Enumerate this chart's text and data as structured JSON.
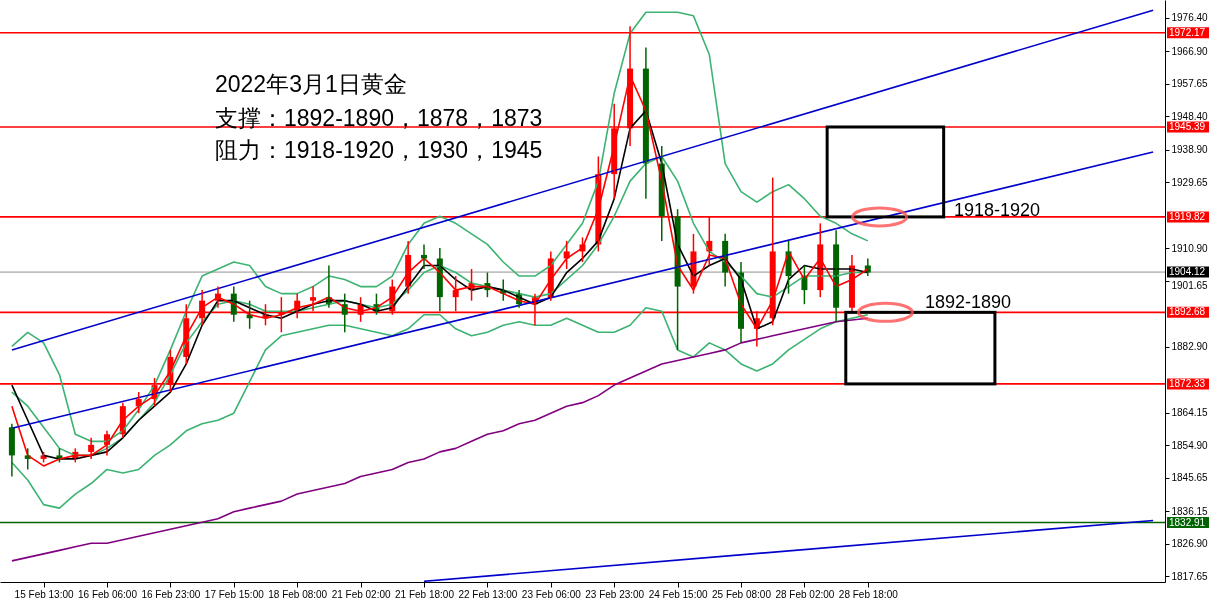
{
  "chart_data": {
    "type": "candlestick",
    "title": "2022年3月1日黄金",
    "annotations": [
      "支撑：1892-1890，1878，1873",
      "阻力：1918-1920，1930，1945",
      "1918-1920",
      "1892-1890"
    ],
    "categories": [
      null,
      null,
      "15 Feb 13:00",
      null,
      null,
      null,
      "16 Feb 06:00",
      null,
      null,
      null,
      "16 Feb 23:00",
      null,
      null,
      null,
      "17 Feb 15:00",
      null,
      null,
      null,
      "18 Feb 08:00",
      null,
      null,
      null,
      "21 Feb 02:00",
      null,
      null,
      null,
      "21 Feb 18:00",
      null,
      null,
      null,
      "22 Feb 13:00",
      null,
      null,
      null,
      "23 Feb 06:00",
      null,
      null,
      null,
      "23 Feb 23:00",
      null,
      null,
      null,
      "24 Feb 15:00",
      null,
      null,
      null,
      "25 Feb 08:00",
      null,
      null,
      null,
      "28 Feb 02:00",
      null,
      null,
      null,
      "28 Feb 18:00",
      null,
      null,
      null,
      null,
      null,
      null,
      null,
      null,
      null,
      null,
      null,
      null,
      null,
      null,
      null,
      null,
      null,
      null
    ],
    "ohlc": [
      [
        1860,
        1861,
        1846,
        1852
      ],
      [
        1852,
        1854,
        1848,
        1851
      ],
      [
        1851,
        1853,
        1850,
        1852
      ],
      [
        1852,
        1854,
        1850,
        1851
      ],
      [
        1851,
        1854,
        1850,
        1853
      ],
      [
        1853,
        1857,
        1851,
        1855
      ],
      [
        1855,
        1859,
        1852,
        1858
      ],
      [
        1858,
        1867,
        1857,
        1866
      ],
      [
        1866,
        1870,
        1864,
        1868
      ],
      [
        1868,
        1874,
        1866,
        1872
      ],
      [
        1872,
        1882,
        1870,
        1880
      ],
      [
        1880,
        1895,
        1878,
        1891
      ],
      [
        1891,
        1899,
        1889,
        1896
      ],
      [
        1896,
        1900,
        1894,
        1898
      ],
      [
        1898,
        1900,
        1890,
        1892
      ],
      [
        1892,
        1896,
        1888,
        1891
      ],
      [
        1891,
        1895,
        1889,
        1892
      ],
      [
        1892,
        1897,
        1887,
        1893
      ],
      [
        1893,
        1898,
        1891,
        1896
      ],
      [
        1896,
        1900,
        1893,
        1897
      ],
      [
        1897,
        1906,
        1894,
        1895
      ],
      [
        1895,
        1898,
        1887,
        1892
      ],
      [
        1892,
        1897,
        1890,
        1895
      ],
      [
        1895,
        1898,
        1892,
        1893
      ],
      [
        1893,
        1902,
        1892,
        1900
      ],
      [
        1900,
        1913,
        1898,
        1909
      ],
      [
        1909,
        1912,
        1905,
        1908
      ],
      [
        1908,
        1911,
        1893,
        1897
      ],
      [
        1897,
        1903,
        1893,
        1899
      ],
      [
        1899,
        1905,
        1896,
        1901
      ],
      [
        1901,
        1904,
        1897,
        1899
      ],
      [
        1899,
        1902,
        1896,
        1898
      ],
      [
        1898,
        1899,
        1894,
        1895
      ],
      [
        1895,
        1898,
        1889,
        1897
      ],
      [
        1897,
        1910,
        1896,
        1908
      ],
      [
        1908,
        1913,
        1905,
        1910
      ],
      [
        1910,
        1914,
        1907,
        1912
      ],
      [
        1912,
        1937,
        1910,
        1932
      ],
      [
        1932,
        1952,
        1925,
        1945
      ],
      [
        1945,
        1974,
        1940,
        1962
      ],
      [
        1962,
        1968,
        1925,
        1935
      ],
      [
        1935,
        1940,
        1913,
        1920
      ],
      [
        1920,
        1922,
        1882,
        1900
      ],
      [
        1900,
        1915,
        1898,
        1910
      ],
      [
        1910,
        1920,
        1906,
        1913
      ],
      [
        1913,
        1915,
        1900,
        1904
      ],
      [
        1904,
        1907,
        1884,
        1888
      ],
      [
        1888,
        1893,
        1883,
        1891
      ],
      [
        1891,
        1931,
        1889,
        1910
      ],
      [
        1910,
        1913,
        1898,
        1903
      ],
      [
        1903,
        1906,
        1895,
        1899
      ],
      [
        1899,
        1918,
        1897,
        1912
      ],
      [
        1912,
        1916,
        1890,
        1894
      ],
      [
        1894,
        1909,
        1893,
        1906
      ],
      [
        1906,
        1908,
        1903,
        1904
      ],
      null,
      null,
      null,
      null,
      null,
      null,
      null,
      null,
      null,
      null,
      null,
      null,
      null,
      null,
      null,
      null,
      null,
      null
    ],
    "colors": [
      "#006400",
      "#006400",
      "#ff0000",
      "#006400",
      "#ff0000",
      "#ff0000",
      "#ff0000",
      "#ff0000",
      "#ff0000",
      "#ff0000",
      "#ff0000",
      "#ff0000",
      "#ff0000",
      "#ff0000",
      "#006400",
      "#006400",
      "#ff0000",
      "#ff0000",
      "#ff0000",
      "#ff0000",
      "#006400",
      "#006400",
      "#ff0000",
      "#006400",
      "#ff0000",
      "#ff0000",
      "#006400",
      "#006400",
      "#ff0000",
      "#ff0000",
      "#006400",
      "#006400",
      "#006400",
      "#ff0000",
      "#ff0000",
      "#ff0000",
      "#ff0000",
      "#ff0000",
      "#ff0000",
      "#ff0000",
      "#006400",
      "#006400",
      "#006400",
      "#ff0000",
      "#ff0000",
      "#006400",
      "#006400",
      "#ff0000",
      "#ff0000",
      "#006400",
      "#006400",
      "#ff0000",
      "#006400",
      "#ff0000",
      "#006400",
      null,
      null,
      null,
      null,
      null,
      null,
      null,
      null,
      null,
      null,
      null,
      null,
      null,
      null,
      null,
      null,
      null,
      null
    ],
    "ylim": [
      1816,
      1981.5
    ],
    "yticks": [
      {
        "value": 1976.4,
        "label": "1976.40"
      },
      {
        "value": 1966.9,
        "label": "1966.90"
      },
      {
        "value": 1957.65,
        "label": "1957.65"
      },
      {
        "value": 1948.4,
        "label": "1948.40"
      },
      {
        "value": 1938.9,
        "label": "1938.90"
      },
      {
        "value": 1929.65,
        "label": "1929.65"
      },
      {
        "value": 1910.9,
        "label": "1910.90"
      },
      {
        "value": 1901.65,
        "label": "1901.65"
      },
      {
        "value": 1882.9,
        "label": "1882.90"
      },
      {
        "value": 1864.15,
        "label": "1864.15"
      },
      {
        "value": 1854.9,
        "label": "1854.90"
      },
      {
        "value": 1845.65,
        "label": "1845.65"
      },
      {
        "value": 1836.15,
        "label": "1836.15"
      },
      {
        "value": 1826.9,
        "label": "1826.90"
      },
      {
        "value": 1817.65,
        "label": "1817.65"
      }
    ],
    "ref_lines": [
      {
        "axis": "y",
        "value": 1972.17,
        "label": "1972.17",
        "color": "#ff0000"
      },
      {
        "axis": "y",
        "value": 1945.39,
        "label": "1945.39",
        "color": "#ff0000"
      },
      {
        "axis": "y",
        "value": 1919.82,
        "label": "1919.82",
        "color": "#ff0000"
      },
      {
        "axis": "y",
        "value": 1892.68,
        "label": "1892.68",
        "color": "#ff0000"
      },
      {
        "axis": "y",
        "value": 1872.33,
        "label": "1872.33",
        "color": "#ff0000"
      },
      {
        "axis": "y",
        "value": 1904.12,
        "label": "1904.12",
        "color": "#c0c0c0"
      },
      {
        "axis": "y",
        "value": 1832.91,
        "label": "1832.91",
        "color": "#006400"
      }
    ],
    "series": [
      {
        "type": "line",
        "color": "#3cb371",
        "values": [
          1883,
          1887,
          1884,
          1875,
          1858,
          1856,
          1856,
          1859,
          1865,
          1872,
          1882,
          1893,
          1903,
          1905,
          1907,
          1906,
          1900,
          1898,
          1898,
          1900,
          1903,
          1902,
          1900,
          1900,
          1903,
          1912,
          1918,
          1920,
          1918,
          1915,
          1912,
          1907,
          1903,
          1903,
          1906,
          1912,
          1918,
          1930,
          1955,
          1972,
          1978,
          1978,
          1978,
          1977,
          1966,
          1935,
          1927,
          1924,
          1927,
          1929,
          1925,
          1920,
          1918,
          1915,
          1913,
          null,
          null,
          null,
          null,
          null,
          null,
          null,
          null,
          null,
          null,
          null,
          null,
          null,
          null,
          null,
          null,
          null,
          null
        ]
      },
      {
        "type": "line",
        "color": "#3cb371",
        "values": [
          1870,
          1866,
          1860,
          1854,
          1852,
          1852,
          1854,
          1857,
          1862,
          1867,
          1875,
          1884,
          1890,
          1895,
          1896,
          1895,
          1893,
          1893,
          1893,
          1894,
          1895,
          1896,
          1895,
          1894,
          1895,
          1899,
          1904,
          1906,
          1904,
          1901,
          1900,
          1899,
          1898,
          1897,
          1898,
          1902,
          1906,
          1912,
          1920,
          1930,
          1935,
          1937,
          1930,
          1918,
          1910,
          1907,
          1903,
          1898,
          1897,
          1900,
          1903,
          1903,
          1903,
          1904,
          1904,
          null,
          null,
          null,
          null,
          null,
          null,
          null,
          null,
          null,
          null,
          null,
          null,
          null,
          null,
          null,
          null,
          null,
          null
        ]
      },
      {
        "type": "line",
        "color": "#3cb371",
        "values": [
          1850,
          1845,
          1838,
          1837,
          1841,
          1844,
          1848,
          1847,
          1848,
          1852,
          1855,
          1859,
          1861,
          1862,
          1864,
          1873,
          1882,
          1886,
          1887,
          1888,
          1889,
          1889,
          1888,
          1887,
          1886,
          1888,
          1892,
          1892,
          1888,
          1886,
          1887,
          1889,
          1890,
          1889,
          1889,
          1891,
          1889,
          1887,
          1887,
          1889,
          1894,
          1893,
          1882,
          1880,
          1884,
          1882,
          1878,
          1876,
          1878,
          1882,
          1885,
          1888,
          1890,
          1891,
          1892,
          null,
          null,
          null,
          null,
          null,
          null,
          null,
          null,
          null,
          null,
          null,
          null,
          null,
          null,
          null,
          null,
          null,
          null
        ]
      },
      {
        "type": "line",
        "color": "#800080",
        "values": [
          1822,
          1823,
          1824,
          1825,
          1826,
          1827,
          1827,
          1828,
          1829,
          1830,
          1831,
          1832,
          1833,
          1834,
          1836,
          1837,
          1838,
          1839,
          1841,
          1842,
          1843,
          1844,
          1846,
          1847,
          1848,
          1850,
          1851,
          1853,
          1854,
          1856,
          1858,
          1859,
          1861,
          1862,
          1864,
          1866,
          1867,
          1869,
          1872,
          1874,
          1876,
          1878,
          1879,
          1880,
          1881,
          1882,
          1884,
          1885,
          1886,
          1887,
          1888,
          1889,
          1890,
          1890.5,
          1891,
          null,
          null,
          null,
          null,
          null,
          null,
          null,
          null,
          null,
          null,
          null,
          null,
          null,
          null,
          null,
          null,
          null,
          null
        ]
      },
      {
        "type": "line",
        "color": "#000000",
        "values": [
          1872,
          1862,
          1852,
          1851,
          1851,
          1852,
          1853,
          1857,
          1862,
          1866,
          1870,
          1878,
          1889,
          1896,
          1896,
          1894,
          1892,
          1891,
          1893,
          1895,
          1896,
          1896,
          1895,
          1893,
          1894,
          1900,
          1906,
          1906,
          1902,
          1899,
          1900,
          1899,
          1897,
          1895,
          1897,
          1904,
          1908,
          1913,
          1925,
          1945,
          1950,
          1935,
          1912,
          1903,
          1906,
          1908,
          1902,
          1888,
          1890,
          1902,
          1906,
          1905,
          1905,
          1905,
          1904,
          null,
          null,
          null,
          null,
          null,
          null,
          null,
          null,
          null,
          null,
          null,
          null,
          null,
          null,
          null,
          null,
          null,
          null
        ]
      },
      {
        "type": "line",
        "color": "#ff0000",
        "values": [
          1866,
          1852,
          1849,
          1851,
          1852,
          1852,
          1855,
          1862,
          1866,
          1869,
          1876,
          1886,
          1894,
          1897,
          1895,
          1892,
          1891,
          1892,
          1894,
          1895,
          1897,
          1894,
          1893,
          1894,
          1897,
          1904,
          1908,
          1904,
          1899,
          1900,
          1900,
          1898,
          1896,
          1895,
          1902,
          1908,
          1911,
          1922,
          1940,
          1960,
          1950,
          1930,
          1906,
          1899,
          1909,
          1908,
          1895,
          1888,
          1896,
          1910,
          1902,
          1908,
          1900,
          1902,
          1905,
          null,
          null,
          null,
          null,
          null,
          null,
          null,
          null,
          null,
          null,
          null,
          null,
          null,
          null,
          null,
          null,
          null,
          null
        ]
      },
      {
        "type": "line",
        "color": "#0000cd",
        "values": [
          1882,
          null,
          null,
          null,
          null,
          null,
          null,
          null,
          null,
          null,
          null,
          null,
          null,
          null,
          null,
          null,
          null,
          null,
          null,
          null,
          null,
          null,
          null,
          null,
          null,
          null,
          null,
          null,
          null,
          null,
          null,
          null,
          null,
          null,
          null,
          null,
          null,
          null,
          null,
          null,
          null,
          null,
          null,
          null,
          null,
          null,
          null,
          null,
          null,
          null,
          null,
          null,
          null,
          null,
          null,
          null,
          null,
          null,
          null,
          null,
          null,
          null,
          null,
          null,
          null,
          null,
          null,
          null,
          null,
          null,
          null,
          null,
          1978.6
        ]
      },
      {
        "type": "line",
        "color": "#0000cd",
        "values": [
          1859.7,
          null,
          null,
          null,
          null,
          null,
          null,
          null,
          null,
          null,
          null,
          null,
          null,
          null,
          null,
          null,
          null,
          null,
          null,
          null,
          null,
          null,
          null,
          null,
          null,
          null,
          null,
          null,
          null,
          null,
          null,
          null,
          null,
          null,
          null,
          null,
          null,
          null,
          null,
          null,
          null,
          null,
          null,
          null,
          null,
          null,
          null,
          null,
          null,
          null,
          null,
          null,
          null,
          null,
          null,
          null,
          null,
          null,
          null,
          null,
          null,
          null,
          null,
          null,
          null,
          null,
          null,
          null,
          null,
          null,
          null,
          null,
          1938.3
        ]
      },
      {
        "type": "line",
        "color": "#0000cd",
        "values": [
          null,
          null,
          null,
          null,
          null,
          null,
          null,
          null,
          null,
          null,
          null,
          null,
          null,
          null,
          null,
          null,
          null,
          null,
          null,
          null,
          null,
          null,
          null,
          null,
          null,
          null,
          1816.2,
          null,
          null,
          null,
          null,
          null,
          null,
          null,
          null,
          null,
          null,
          null,
          null,
          null,
          null,
          null,
          null,
          null,
          null,
          null,
          null,
          null,
          null,
          null,
          null,
          null,
          null,
          null,
          null,
          null,
          null,
          null,
          null,
          null,
          null,
          null,
          null,
          null,
          null,
          null,
          null,
          null,
          null,
          null,
          null,
          null,
          1833.5
        ]
      }
    ]
  }
}
